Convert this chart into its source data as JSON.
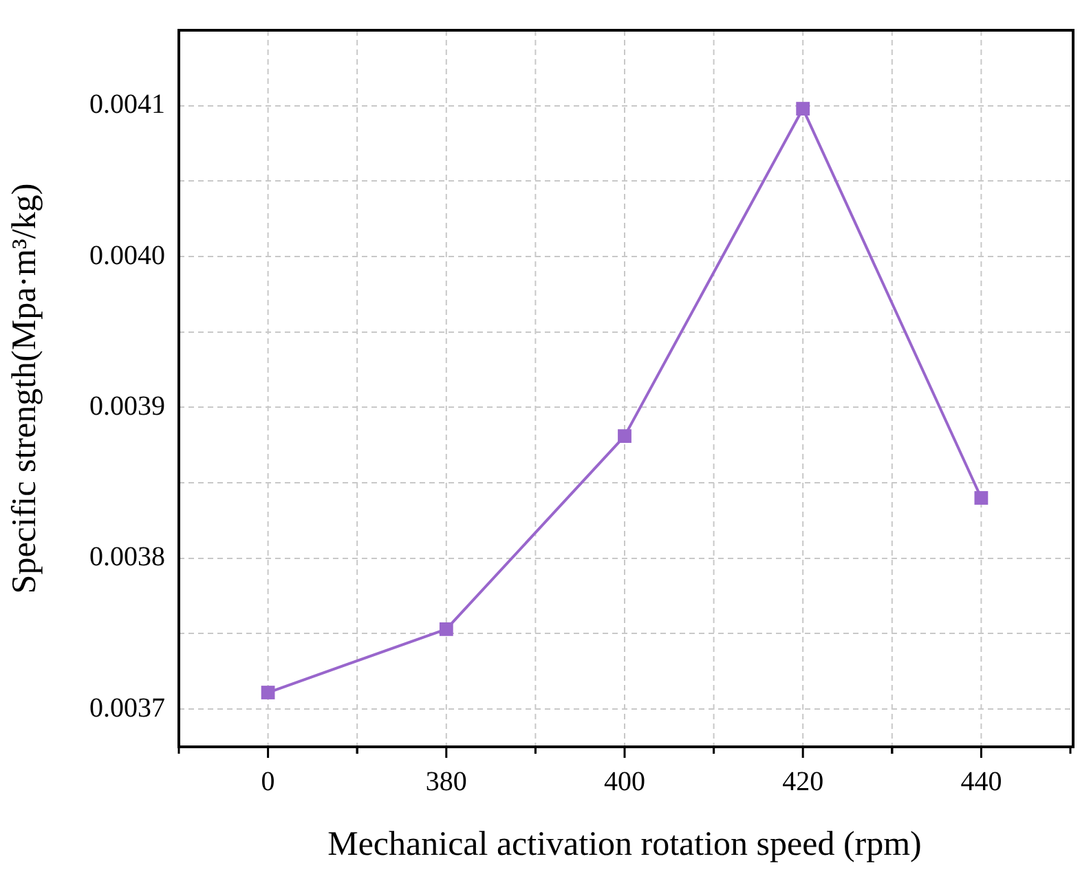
{
  "chart_data": {
    "type": "line",
    "xlabel": "Mechanical activation rotation speed (rpm)",
    "ylabel": "Specific strength(Mpa·m³/kg)",
    "categories": [
      "0",
      "380",
      "400",
      "420",
      "440"
    ],
    "series": [
      {
        "color": "#9966cc",
        "values": [
          0.003711,
          0.003753,
          0.003881,
          0.004098,
          0.00384
        ]
      }
    ],
    "ylim": [
      0.003675,
      0.00415
    ],
    "yticks": [
      0.0037,
      {
        "value": 0.00375,
        "label": null
      },
      0.0038,
      {
        "value": 0.00385,
        "label": null
      },
      0.0039,
      {
        "value": 0.00395,
        "label": null
      },
      {
        "value": 0.004,
        "label": "0.0040"
      },
      {
        "value": 0.00405,
        "label": null
      },
      0.0041
    ],
    "grid": true,
    "marker": "square",
    "line_style": "solid",
    "legend": false
  }
}
